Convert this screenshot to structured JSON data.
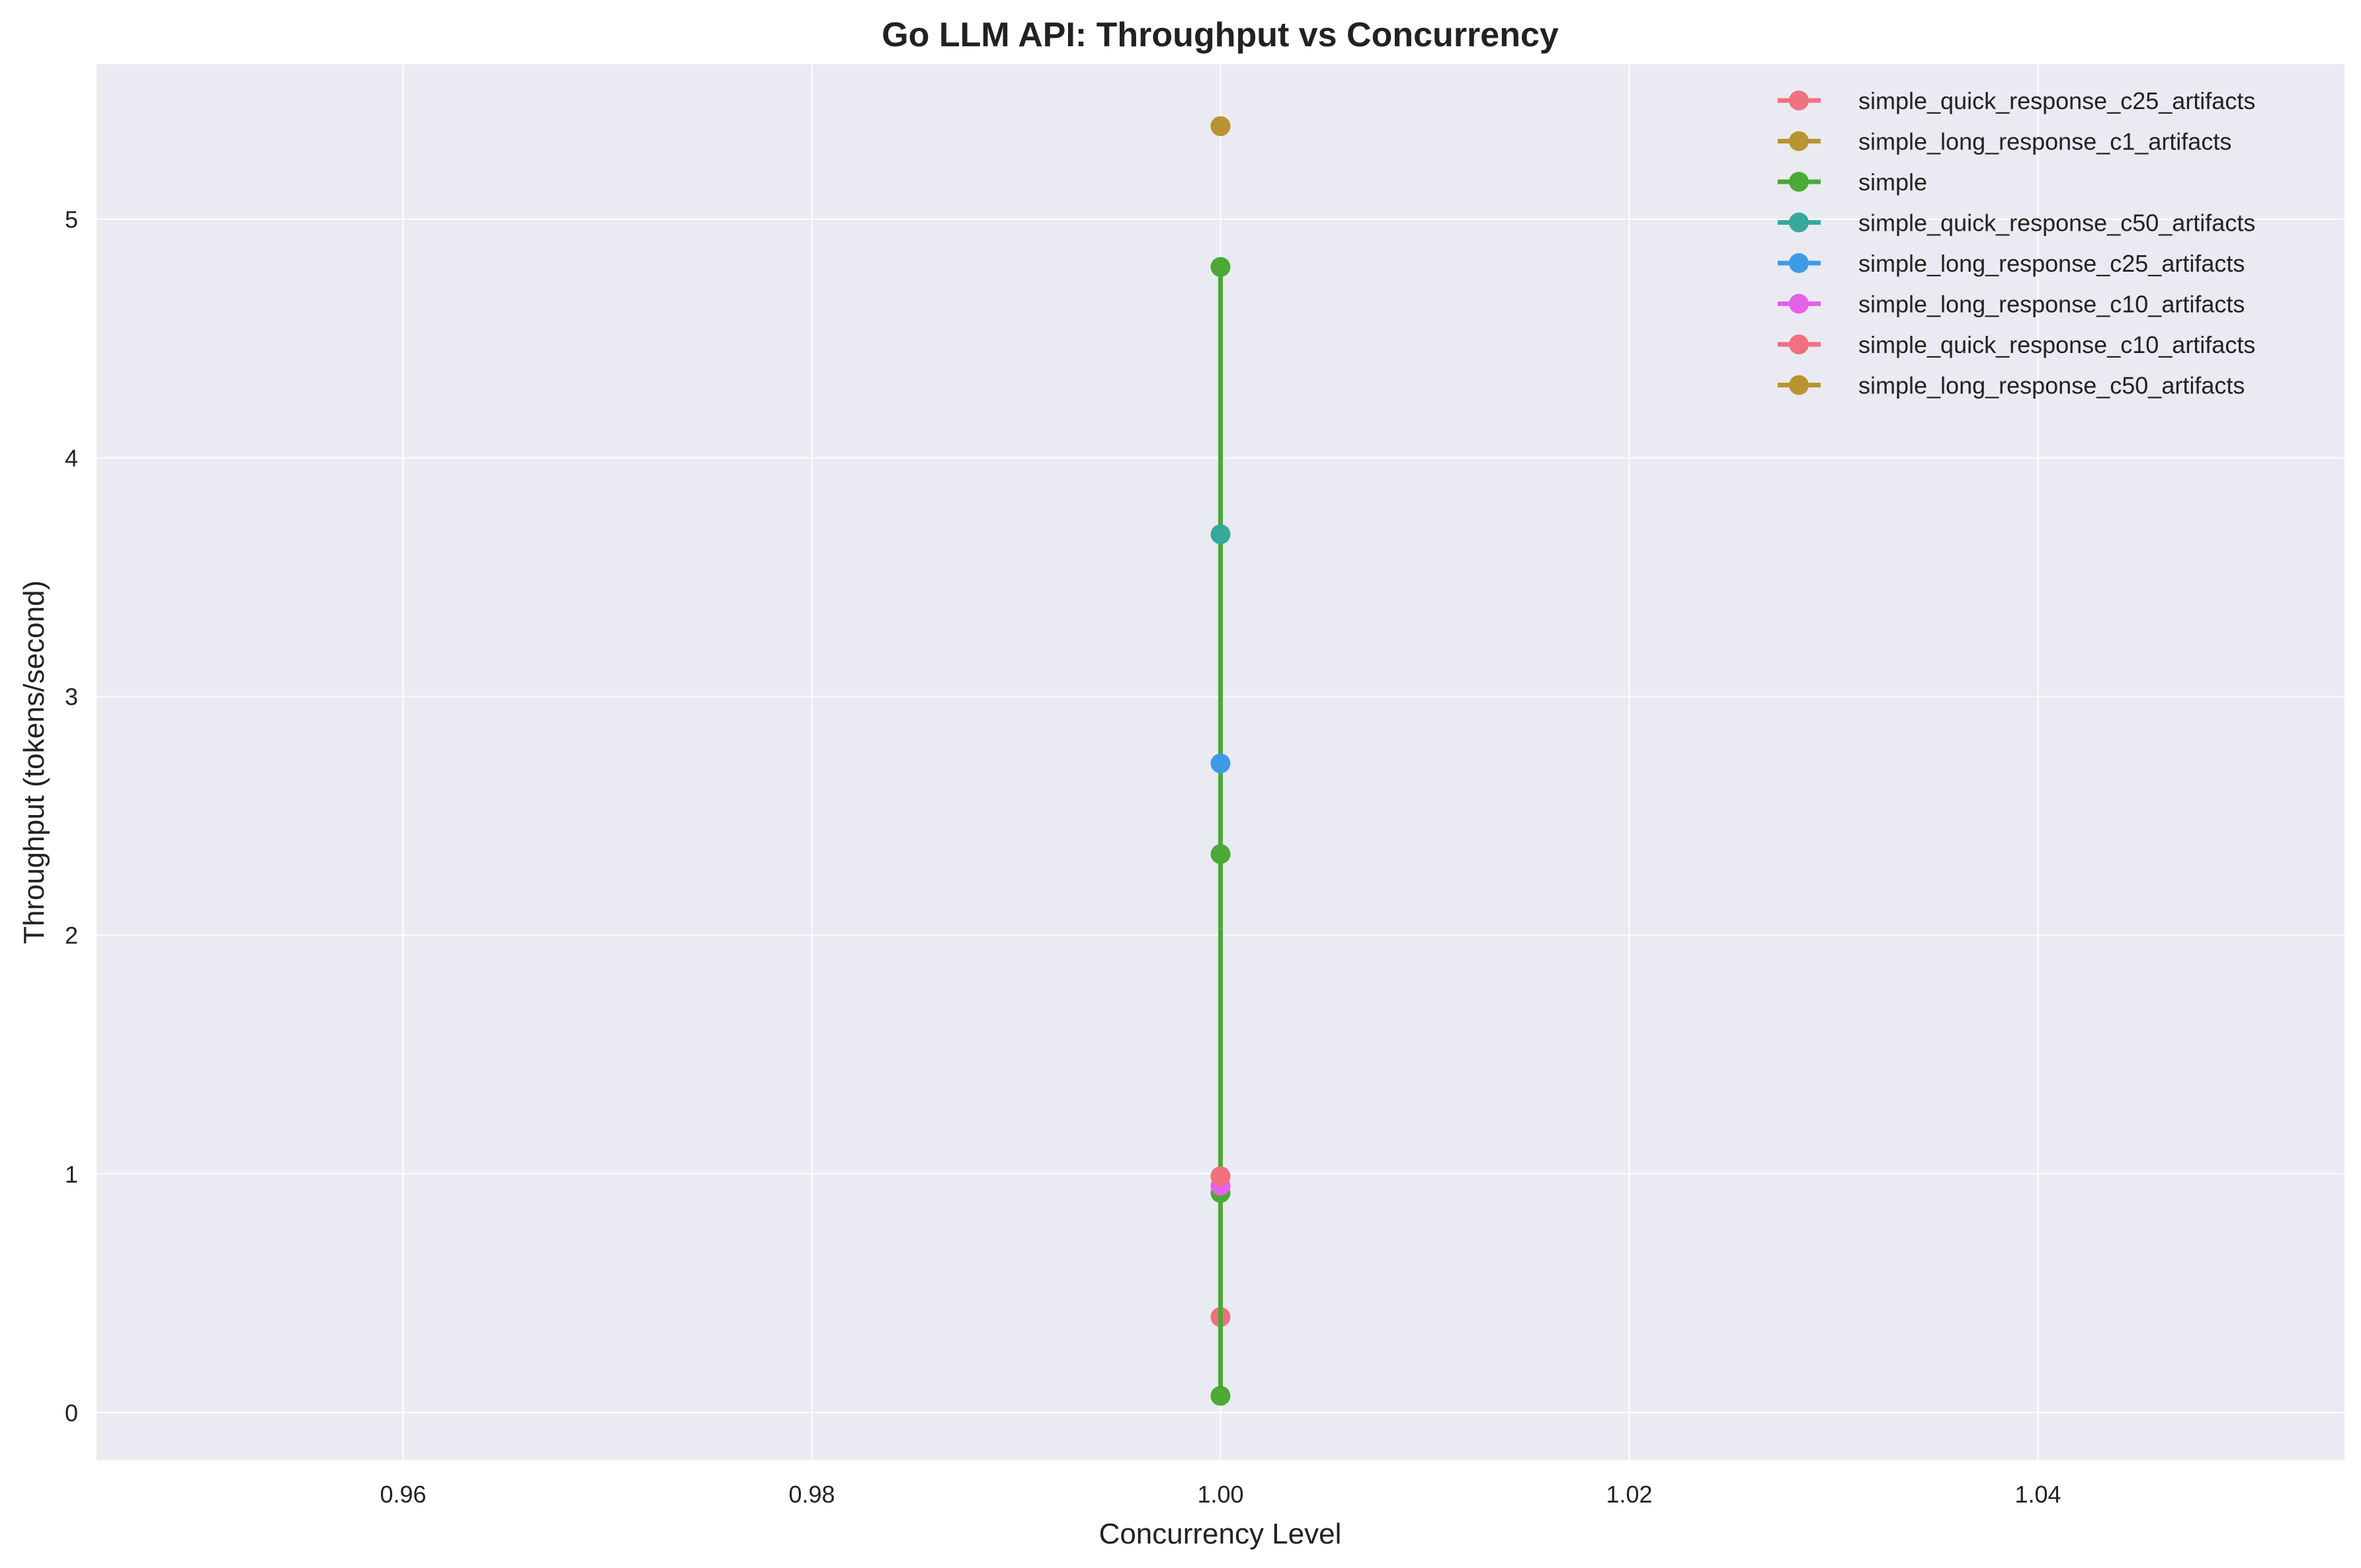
{
  "chart_data": {
    "type": "line",
    "title": "Go LLM API: Throughput vs Concurrency",
    "xlabel": "Concurrency Level",
    "ylabel": "Throughput (tokens/second)",
    "xlim": [
      0.945,
      1.055
    ],
    "ylim": [
      -0.2,
      5.65
    ],
    "xticks": [
      "0.96",
      "0.98",
      "1.00",
      "1.02",
      "1.04"
    ],
    "yticks": [
      "0",
      "1",
      "2",
      "3",
      "4",
      "5"
    ],
    "grid": true,
    "legend_position": "top-right",
    "background_color": "#eaeaf2",
    "series": [
      {
        "name": "simple_quick_response_c25_artifacts",
        "color": "#f07080",
        "x": [
          1.0
        ],
        "y": [
          0.4
        ]
      },
      {
        "name": "simple_long_response_c1_artifacts",
        "color": "#b89530",
        "x": [
          1.0
        ],
        "y": [
          5.39
        ]
      },
      {
        "name": "simple",
        "color": "#4ba935",
        "x": [
          1.0,
          1.0,
          1.0,
          1.0
        ],
        "y": [
          4.8,
          2.34,
          0.92,
          0.07
        ]
      },
      {
        "name": "simple_quick_response_c50_artifacts",
        "color": "#36a89c",
        "x": [
          1.0
        ],
        "y": [
          3.68
        ]
      },
      {
        "name": "simple_long_response_c25_artifacts",
        "color": "#3e9be8",
        "x": [
          1.0
        ],
        "y": [
          2.72
        ]
      },
      {
        "name": "simple_long_response_c10_artifacts",
        "color": "#e462e8",
        "x": [
          1.0
        ],
        "y": [
          0.95
        ]
      },
      {
        "name": "simple_quick_response_c10_artifacts",
        "color": "#f07080",
        "x": [
          1.0
        ],
        "y": [
          0.99
        ]
      },
      {
        "name": "simple_long_response_c50_artifacts",
        "color": "#b89530",
        "x": [
          1.0
        ],
        "y": [
          5.39
        ]
      }
    ]
  }
}
